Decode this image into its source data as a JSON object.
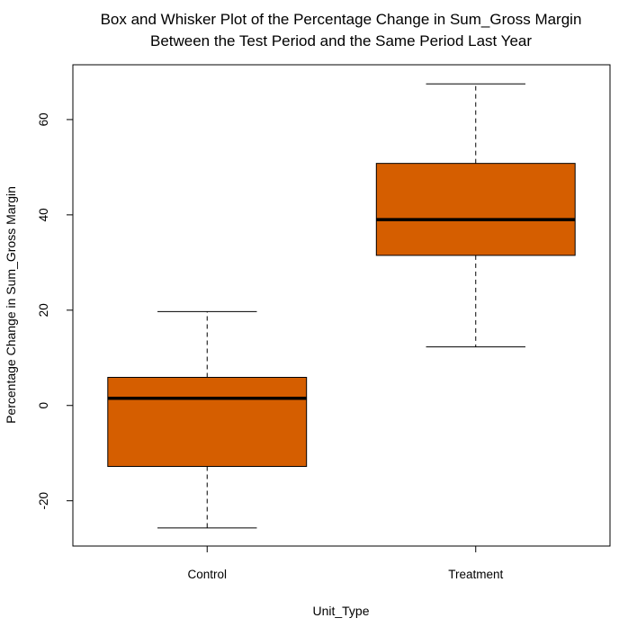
{
  "chart_data": {
    "type": "box",
    "title": "Box and Whisker Plot of the Percentage Change in Sum_Gross Margin",
    "subtitle": "Between the Test Period and the Same Period Last Year",
    "xlabel": "Unit_Type",
    "ylabel": "Percentage Change in Sum_Gross Margin",
    "ylim": [
      -29.5,
      71.5
    ],
    "yticks": [
      -20,
      0,
      20,
      40,
      60
    ],
    "categories": [
      "Control",
      "Treatment"
    ],
    "boxes": [
      {
        "category": "Control",
        "min": -25.7,
        "q1": -12.8,
        "median": 1.5,
        "q3": 5.9,
        "max": 19.7
      },
      {
        "category": "Treatment",
        "min": 12.3,
        "q1": 31.5,
        "median": 39.0,
        "q3": 50.8,
        "max": 67.5
      }
    ],
    "box_color": "#d55e00",
    "grid": false
  }
}
